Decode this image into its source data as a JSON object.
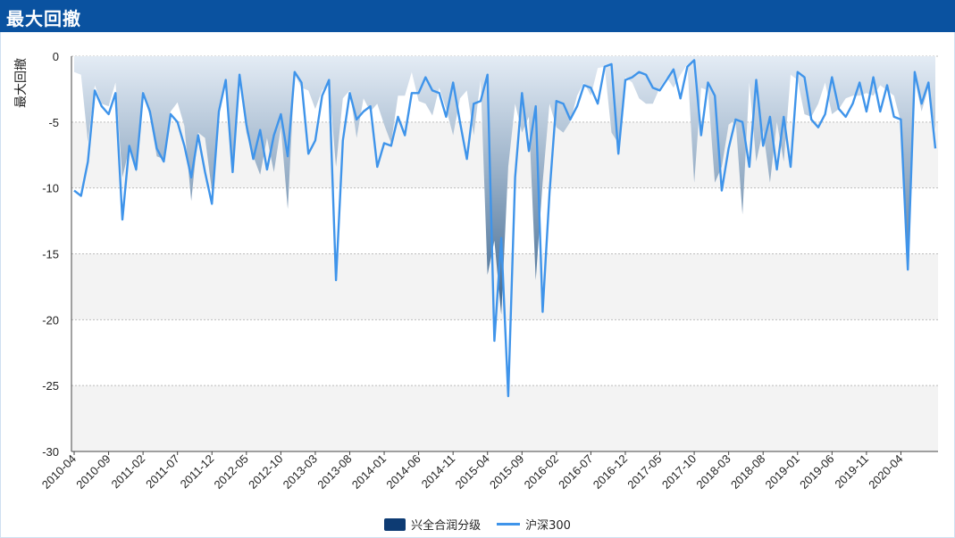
{
  "header": {
    "title": "最大回撤"
  },
  "chart_data": {
    "type": "area",
    "ylabel": "最大回撤",
    "ylim": [
      -30,
      0
    ],
    "yticks": [
      0,
      -5,
      -10,
      -15,
      -20,
      -25,
      -30
    ],
    "xtick_labels": [
      "2010-04",
      "2010-09",
      "2011-02",
      "2011-07",
      "2011-12",
      "2012-05",
      "2012-10",
      "2013-03",
      "2013-08",
      "2014-01",
      "2014-06",
      "2014-11",
      "2015-04",
      "2015-09",
      "2016-02",
      "2016-07",
      "2016-12",
      "2017-05",
      "2017-10",
      "2018-03",
      "2018-08",
      "2019-01",
      "2019-06",
      "2019-11",
      "2020-04"
    ],
    "x_start": "2010-04",
    "grid": "horizontal-dotted",
    "legend_position": "bottom",
    "colors": {
      "area_top": "#e4ecf5",
      "area_bottom": "#3e6790",
      "line": "#3f94ea",
      "legend_area": "#0d3b73"
    },
    "series": [
      {
        "name": "兴全合润分级",
        "kind": "area",
        "values": [
          -1.2,
          -1.4,
          -6.5,
          -2.2,
          -3.6,
          -3.8,
          -2.0,
          -9.2,
          -7.0,
          -8.8,
          -2.6,
          -4.6,
          -7.6,
          -7.8,
          -4.2,
          -3.5,
          -5.3,
          -11.0,
          -5.8,
          -6.2,
          -10.2,
          -4.0,
          -2.2,
          -8.4,
          -1.8,
          -5.8,
          -7.6,
          -9.0,
          -6.2,
          -8.8,
          -5.4,
          -11.6,
          -1.4,
          -2.4,
          -2.6,
          -4.0,
          -2.6,
          -2.0,
          -8.4,
          -3.2,
          -2.6,
          -6.2,
          -3.2,
          -4.2,
          -3.6,
          -5.2,
          -6.6,
          -3.0,
          -3.0,
          -1.2,
          -3.4,
          -3.6,
          -4.5,
          -2.4,
          -4.0,
          -6.0,
          -3.2,
          -2.6,
          -6.0,
          -1.8,
          -16.6,
          -14.0,
          -19.6,
          -8.4,
          -3.6,
          -5.8,
          -4.6,
          -17.0,
          -9.6,
          -3.6,
          -5.4,
          -5.8,
          -5.0,
          -3.0,
          -2.0,
          -3.0,
          -0.9,
          -0.8,
          -5.8,
          -6.6,
          -1.6,
          -2.0,
          -3.2,
          -3.6,
          -3.6,
          -2.4,
          -1.6,
          -2.4,
          -1.4,
          -0.6,
          -9.6,
          -2.4,
          -2.6,
          -9.6,
          -8.4,
          -5.2,
          -4.8,
          -12.0,
          -2.0,
          -8.0,
          -5.6,
          -9.6,
          -5.0,
          -8.0,
          -1.4,
          -1.8,
          -4.4,
          -4.6,
          -3.6,
          -2.0,
          -4.4,
          -4.0,
          -3.2,
          -3.0,
          -3.0,
          -2.8,
          -3.0,
          -2.2,
          -2.6,
          -3.0,
          -5.0,
          -15.8,
          -1.8,
          -4.2,
          -2.4,
          -5.6
        ]
      },
      {
        "name": "沪深300",
        "kind": "line",
        "values": [
          -10.2,
          -10.6,
          -8.0,
          -2.6,
          -3.8,
          -4.4,
          -2.8,
          -12.4,
          -6.8,
          -8.6,
          -2.8,
          -4.2,
          -7.0,
          -8.0,
          -4.4,
          -5.0,
          -6.8,
          -9.2,
          -6.0,
          -8.8,
          -11.2,
          -4.2,
          -1.8,
          -8.8,
          -1.4,
          -5.2,
          -7.8,
          -5.6,
          -8.6,
          -6.0,
          -4.4,
          -7.6,
          -1.2,
          -2.0,
          -7.4,
          -6.4,
          -3.0,
          -1.8,
          -17.0,
          -6.4,
          -2.8,
          -4.8,
          -4.2,
          -3.8,
          -8.4,
          -6.6,
          -6.8,
          -4.6,
          -6.0,
          -2.8,
          -2.8,
          -1.6,
          -2.6,
          -2.8,
          -4.6,
          -2.0,
          -5.0,
          -7.8,
          -3.6,
          -3.4,
          -1.4,
          -21.6,
          -13.8,
          -25.8,
          -9.2,
          -2.8,
          -7.2,
          -3.8,
          -19.4,
          -10.4,
          -3.4,
          -3.6,
          -4.8,
          -3.8,
          -2.2,
          -2.4,
          -3.6,
          -0.8,
          -0.6,
          -7.4,
          -1.8,
          -1.6,
          -1.2,
          -1.4,
          -2.4,
          -2.6,
          -1.8,
          -1.0,
          -3.2,
          -0.8,
          -0.3,
          -6.0,
          -2.0,
          -3.0,
          -10.2,
          -7.0,
          -4.8,
          -5.0,
          -8.4,
          -1.8,
          -6.8,
          -4.6,
          -8.6,
          -4.6,
          -8.4,
          -1.2,
          -1.6,
          -4.8,
          -5.4,
          -4.4,
          -1.6,
          -4.0,
          -4.6,
          -3.6,
          -2.0,
          -4.2,
          -1.6,
          -4.2,
          -2.2,
          -4.6,
          -4.8,
          -16.2,
          -1.2,
          -3.6,
          -2.0,
          -7.0
        ]
      }
    ]
  }
}
